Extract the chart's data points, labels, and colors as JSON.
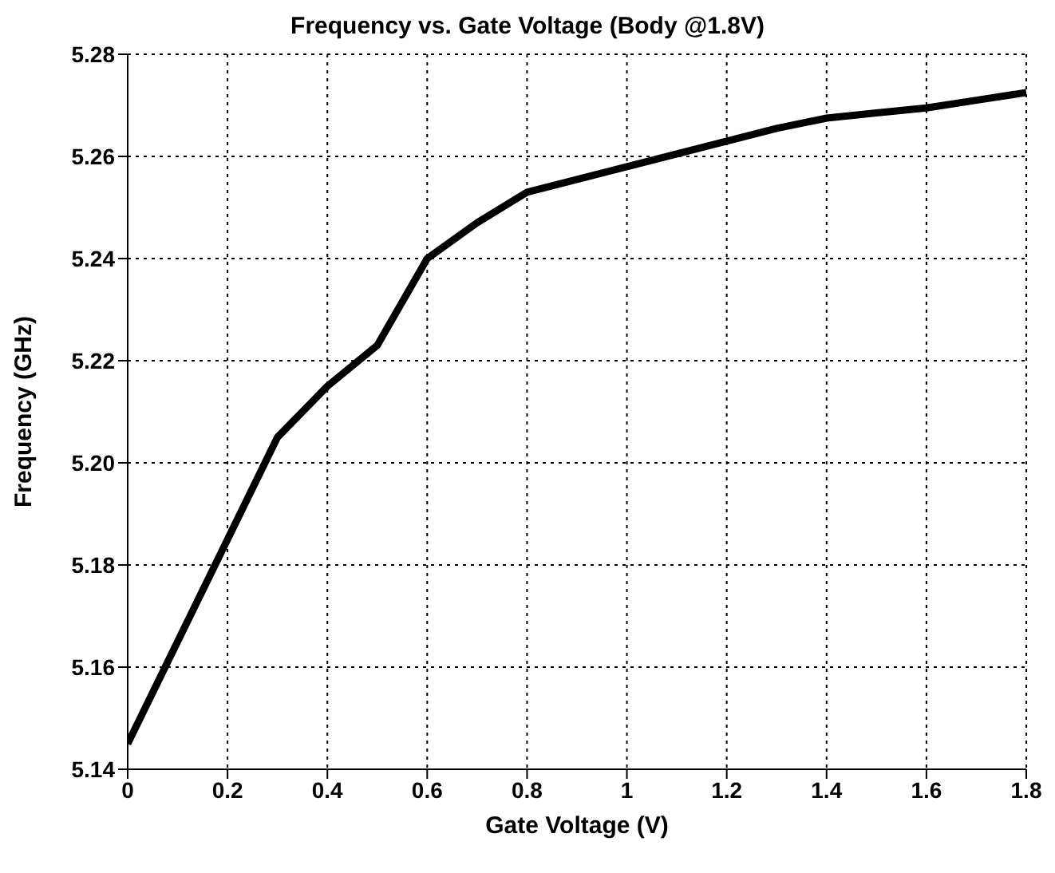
{
  "chart_data": {
    "type": "line",
    "title": "Frequency vs. Gate Voltage (Body @1.8V)",
    "xlabel": "Gate Voltage (V)",
    "ylabel": "Frequency (GHz)",
    "x": [
      0,
      0.1,
      0.2,
      0.3,
      0.4,
      0.5,
      0.6,
      0.7,
      0.8,
      0.9,
      1.0,
      1.1,
      1.2,
      1.3,
      1.4,
      1.5,
      1.6,
      1.7,
      1.8
    ],
    "series": [
      {
        "color": "#000000",
        "values": [
          5.145,
          5.165,
          5.185,
          5.205,
          5.215,
          5.223,
          5.24,
          5.247,
          5.253,
          5.2555,
          5.258,
          5.2605,
          5.263,
          5.2655,
          5.2675,
          5.2685,
          5.2695,
          5.271,
          5.2725
        ]
      }
    ],
    "xlim": [
      0,
      1.8
    ],
    "xticks": [
      0,
      0.2,
      0.4,
      0.6,
      0.8,
      1,
      1.2,
      1.4,
      1.6,
      1.8
    ],
    "ylim": [
      5.14,
      5.28
    ],
    "yticks": [
      5.14,
      5.16,
      5.18,
      {
        "value": 5.2,
        "label": "5.20"
      },
      5.22,
      5.24,
      5.26,
      5.28
    ],
    "grid": true,
    "legend": false,
    "marker": "none",
    "line_style": "solid"
  }
}
